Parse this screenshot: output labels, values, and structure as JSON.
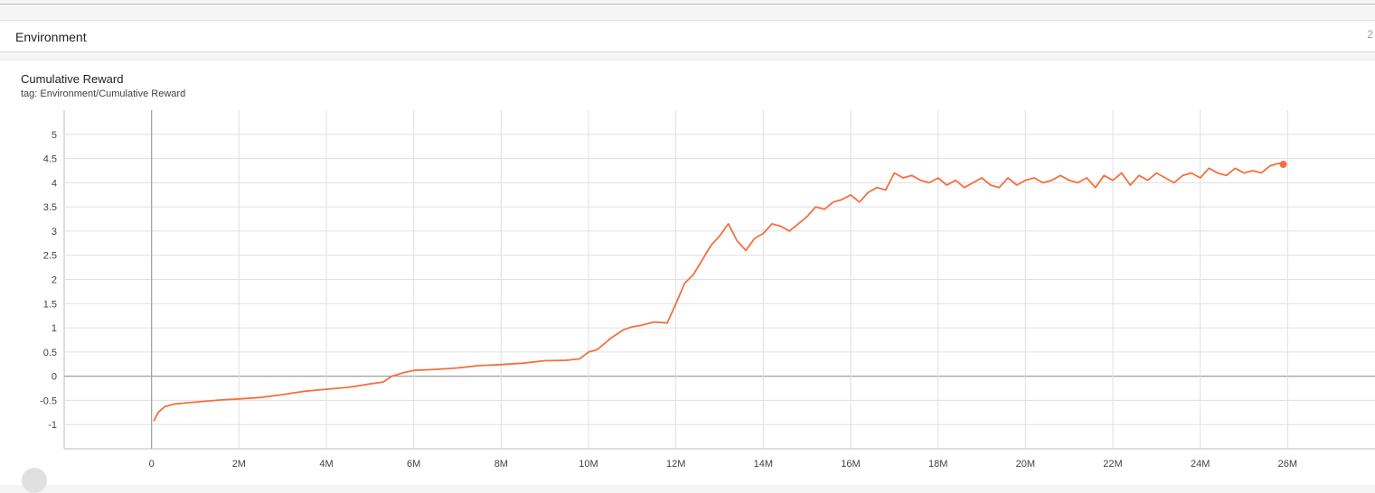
{
  "section": {
    "title": "Environment",
    "count": "2"
  },
  "card": {
    "title": "Cumulative Reward",
    "tag": "tag: Environment/Cumulative Reward"
  },
  "colors": {
    "series": "#f4703e",
    "grid": "#e0e0e0",
    "axis": "#9e9e9e"
  },
  "chart_data": {
    "type": "line",
    "title": "Cumulative Reward",
    "xlabel": "",
    "ylabel": "",
    "xlim": [
      -2000000,
      28000000
    ],
    "ylim": [
      -1.5,
      5.5
    ],
    "xticks": [
      0,
      2000000,
      4000000,
      6000000,
      8000000,
      10000000,
      12000000,
      14000000,
      16000000,
      18000000,
      20000000,
      22000000,
      24000000,
      26000000
    ],
    "xtick_labels": [
      "0",
      "2M",
      "4M",
      "6M",
      "8M",
      "10M",
      "12M",
      "14M",
      "16M",
      "18M",
      "20M",
      "22M",
      "24M",
      "26M"
    ],
    "yticks": [
      -1,
      -0.5,
      0,
      0.5,
      1,
      1.5,
      2,
      2.5,
      3,
      3.5,
      4,
      4.5,
      5
    ],
    "ytick_labels": [
      "-1",
      "-0.5",
      "0",
      "0.5",
      "1",
      "1.5",
      "2",
      "2.5",
      "3",
      "3.5",
      "4",
      "4.5",
      "5"
    ],
    "grid": true,
    "series": [
      {
        "name": "",
        "x": [
          50000,
          150000,
          300000,
          500000,
          800000,
          1200000,
          1600000,
          2000000,
          2500000,
          3000000,
          3500000,
          4000000,
          4500000,
          5000000,
          5300000,
          5500000,
          5800000,
          6000000,
          6500000,
          7000000,
          7500000,
          8000000,
          8500000,
          9000000,
          9500000,
          9800000,
          10000000,
          10200000,
          10500000,
          10800000,
          11000000,
          11200000,
          11500000,
          11800000,
          12000000,
          12200000,
          12400000,
          12600000,
          12800000,
          13000000,
          13200000,
          13400000,
          13600000,
          13800000,
          14000000,
          14200000,
          14400000,
          14600000,
          14800000,
          15000000,
          15200000,
          15400000,
          15600000,
          15800000,
          16000000,
          16200000,
          16400000,
          16600000,
          16800000,
          17000000,
          17200000,
          17400000,
          17600000,
          17800000,
          18000000,
          18200000,
          18400000,
          18600000,
          18800000,
          19000000,
          19200000,
          19400000,
          19600000,
          19800000,
          20000000,
          20200000,
          20400000,
          20600000,
          20800000,
          21000000,
          21200000,
          21400000,
          21600000,
          21800000,
          22000000,
          22200000,
          22400000,
          22600000,
          22800000,
          23000000,
          23200000,
          23400000,
          23600000,
          23800000,
          24000000,
          24200000,
          24400000,
          24600000,
          24800000,
          25000000,
          25200000,
          25400000,
          25600000,
          25800000,
          25900000
        ],
        "values": [
          -0.93,
          -0.75,
          -0.63,
          -0.58,
          -0.55,
          -0.52,
          -0.49,
          -0.47,
          -0.44,
          -0.38,
          -0.31,
          -0.27,
          -0.23,
          -0.16,
          -0.12,
          0.0,
          0.08,
          0.12,
          0.14,
          0.17,
          0.22,
          0.24,
          0.27,
          0.32,
          0.33,
          0.36,
          0.5,
          0.55,
          0.78,
          0.96,
          1.02,
          1.05,
          1.12,
          1.1,
          1.5,
          1.92,
          2.1,
          2.4,
          2.7,
          2.9,
          3.15,
          2.8,
          2.6,
          2.85,
          2.95,
          3.15,
          3.1,
          3.0,
          3.15,
          3.3,
          3.5,
          3.45,
          3.6,
          3.65,
          3.75,
          3.6,
          3.8,
          3.9,
          3.85,
          4.2,
          4.1,
          4.15,
          4.05,
          4.0,
          4.1,
          3.95,
          4.05,
          3.9,
          4.0,
          4.1,
          3.95,
          3.9,
          4.1,
          3.95,
          4.05,
          4.1,
          4.0,
          4.05,
          4.15,
          4.05,
          4.0,
          4.1,
          3.9,
          4.15,
          4.05,
          4.2,
          3.95,
          4.15,
          4.05,
          4.2,
          4.1,
          4.0,
          4.15,
          4.2,
          4.1,
          4.3,
          4.2,
          4.15,
          4.3,
          4.2,
          4.25,
          4.2,
          4.35,
          4.4,
          4.38
        ]
      }
    ]
  }
}
